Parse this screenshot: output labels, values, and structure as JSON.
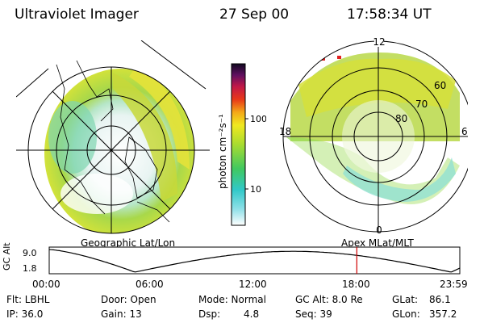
{
  "header": {
    "instrument": "Ultraviolet Imager",
    "date": "27 Sep 00",
    "time": "17:58:34 UT"
  },
  "colorbar": {
    "label": "photon cm⁻²s⁻¹",
    "ticks": [
      "100",
      "10"
    ]
  },
  "left_panel": {
    "caption": "Geographic Lat/Lon"
  },
  "right_panel": {
    "caption": "Apex MLat/MLT",
    "mlt_labels": {
      "top": "12",
      "bottom": "0",
      "left": "18",
      "right": "6"
    },
    "lat_labels": [
      "60",
      "70",
      "80"
    ]
  },
  "orbit": {
    "axis_label": "GC Alt",
    "y_ticks": [
      "9.0",
      "1.8"
    ],
    "x_ticks": [
      "00:00",
      "06:00",
      "12:00",
      "18:00",
      "23:59"
    ],
    "current_time_hours": 17.98
  },
  "status": {
    "flt": "Flt: LBHL",
    "ip": "IP: 36.0",
    "door": "Door: Open",
    "gain": "Gain: 13",
    "mode": "Mode: Normal",
    "dsp_label": "Dsp:",
    "dsp_value": "4.8",
    "gcalt": "GC Alt: 8.0 Re",
    "seq": "Seq: 39",
    "glat_label": "GLat:",
    "glat_value": "86.1",
    "glon_label": "GLon:",
    "glon_value": "357.2"
  },
  "colors": {
    "marker": "#d00000",
    "background": "#ffffff",
    "line": "#000000"
  }
}
